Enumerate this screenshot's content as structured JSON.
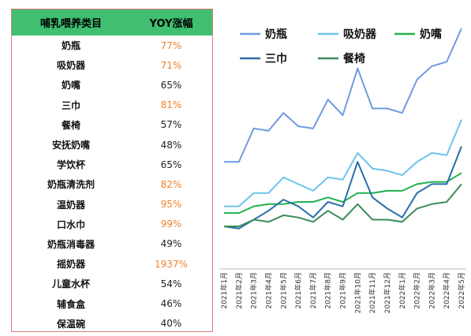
{
  "table": {
    "header": [
      "哺乳喂养类目",
      "YOY涨幅"
    ],
    "rows": [
      {
        "category": "奶瓶",
        "yoy": "77%",
        "highlight": true
      },
      {
        "category": "吸奶器",
        "yoy": "71%",
        "highlight": true
      },
      {
        "category": "奶嘴",
        "yoy": "65%",
        "highlight": false
      },
      {
        "category": "三巾",
        "yoy": "81%",
        "highlight": true
      },
      {
        "category": "餐椅",
        "yoy": "57%",
        "highlight": false
      },
      {
        "category": "安抚奶嘴",
        "yoy": "48%",
        "highlight": false
      },
      {
        "category": "学饮杯",
        "yoy": "65%",
        "highlight": false
      },
      {
        "category": "奶瓶清洗剂",
        "yoy": "82%",
        "highlight": true
      },
      {
        "category": "温奶器",
        "yoy": "95%",
        "highlight": true
      },
      {
        "category": "口水巾",
        "yoy": "99%",
        "highlight": true
      },
      {
        "category": "奶瓶消毒器",
        "yoy": "49%",
        "highlight": false
      },
      {
        "category": "摇奶器",
        "yoy": "1937%",
        "highlight": true
      },
      {
        "category": "儿童水杯",
        "yoy": "54%",
        "highlight": false
      },
      {
        "category": "辅食盒",
        "yoy": "46%",
        "highlight": false
      },
      {
        "category": "保温碗",
        "yoy": "40%",
        "highlight": false
      }
    ]
  },
  "chart_data": {
    "type": "line",
    "title": "",
    "xlabel": "",
    "ylabel": "",
    "grid": false,
    "legend_position": "top",
    "x": [
      "2021年1月",
      "2021年2月",
      "2021年3月",
      "2021年4月",
      "2021年5月",
      "2021年6月",
      "2021年7月",
      "2021年8月",
      "2021年9月",
      "2021年10月",
      "2021年11月",
      "2021年12月",
      "2022年1月",
      "2022年2月",
      "2022年3月",
      "2022年4月",
      "2022年5月"
    ],
    "ylim": [
      0,
      100
    ],
    "series": [
      {
        "name": "奶瓶",
        "color": "#6f9be0",
        "values": [
          40,
          40,
          55,
          54,
          62,
          56,
          55,
          68,
          61,
          82,
          64,
          64,
          62,
          77,
          83,
          85,
          100
        ]
      },
      {
        "name": "吸奶器",
        "color": "#6cc3ec",
        "values": [
          20,
          20,
          26,
          26,
          33,
          30,
          27,
          33,
          32,
          44,
          37,
          36,
          34,
          40,
          44,
          43,
          59
        ]
      },
      {
        "name": "奶嘴",
        "color": "#22b14c",
        "values": [
          17,
          17,
          20,
          21,
          21,
          22,
          22,
          24,
          22,
          26,
          26,
          27,
          27,
          30,
          31,
          31,
          35
        ]
      },
      {
        "name": "三巾",
        "color": "#2a6ea8",
        "values": [
          11,
          10,
          14,
          18,
          23,
          20,
          15,
          22,
          20,
          40,
          24,
          19,
          15,
          26,
          30,
          30,
          47
        ]
      },
      {
        "name": "餐椅",
        "color": "#3c8d5c",
        "values": [
          11,
          11,
          14,
          13,
          16,
          15,
          13,
          18,
          14,
          21,
          14,
          14,
          13,
          19,
          21,
          22,
          30
        ]
      }
    ]
  }
}
